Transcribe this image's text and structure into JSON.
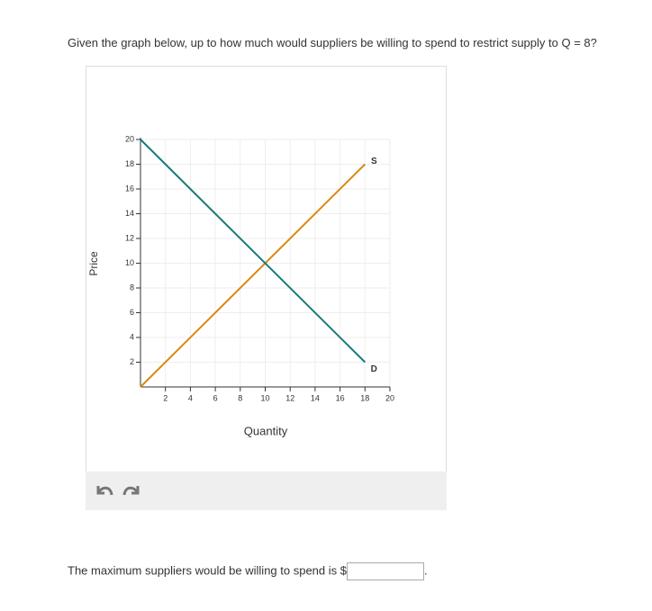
{
  "question": "Given the graph below, up to how much would suppliers be willing to spend to restrict supply to Q = 8?",
  "chart_data": {
    "type": "line",
    "xlabel": "Quantity",
    "ylabel": "Price",
    "x": [
      0,
      18
    ],
    "series": [
      {
        "name": "S",
        "color": "#d98a12",
        "values": [
          0,
          18
        ]
      },
      {
        "name": "D",
        "color": "#1b7a7a",
        "values": [
          20,
          2
        ]
      }
    ],
    "xlim": [
      0,
      20
    ],
    "ylim": [
      0,
      20
    ],
    "xticks": [
      2,
      4,
      6,
      8,
      10,
      12,
      14,
      16,
      18,
      20
    ],
    "yticks": [
      2,
      4,
      6,
      8,
      10,
      12,
      14,
      16,
      18,
      20
    ],
    "grid": true
  },
  "answer_prompt": "The maximum suppliers would be willing to spend is $",
  "answer_suffix": "."
}
